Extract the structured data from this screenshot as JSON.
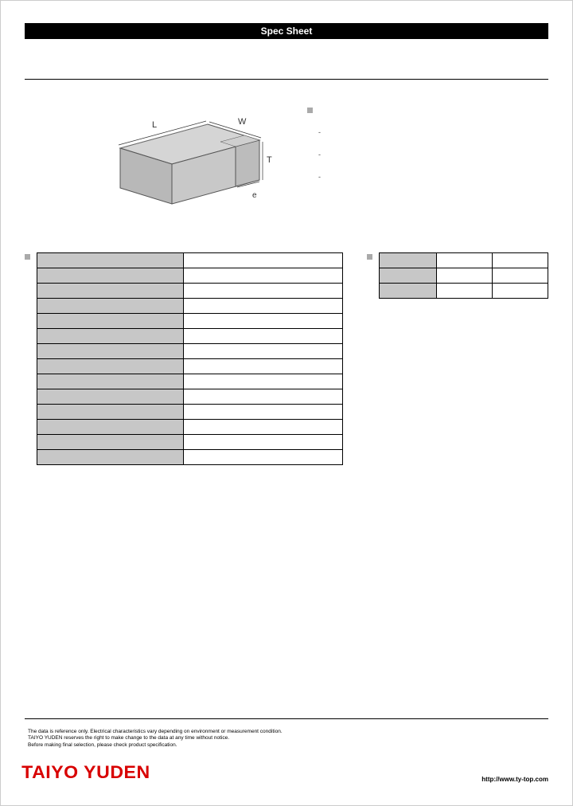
{
  "header": {
    "title": "Spec Sheet"
  },
  "diagram": {
    "labels": {
      "L": "L",
      "W": "W",
      "T": "T",
      "e": "e"
    },
    "stroke": "#555555",
    "fill_top": "#d5d5d5",
    "fill_side": "#c0c0c0",
    "fill_front": "#b0b0b0",
    "fill_cap": "#cccccc",
    "label_fontsize": 10
  },
  "bullets": {
    "items": [
      "-",
      "-",
      "-"
    ]
  },
  "spec_table": {
    "rows": [
      {
        "label": "",
        "value": ""
      },
      {
        "label": "",
        "value": ""
      },
      {
        "label": "",
        "value": ""
      },
      {
        "label": "",
        "value": ""
      },
      {
        "label": "",
        "value": ""
      },
      {
        "label": "",
        "value": ""
      },
      {
        "label": "",
        "value": ""
      },
      {
        "label": "",
        "value": ""
      },
      {
        "label": "",
        "value": ""
      },
      {
        "label": "",
        "value": ""
      },
      {
        "label": "",
        "value": ""
      },
      {
        "label": "",
        "value": ""
      },
      {
        "label": "",
        "value": ""
      },
      {
        "label": "",
        "value": ""
      }
    ]
  },
  "small_table": {
    "rows": [
      {
        "label": "",
        "v1": "",
        "v2": ""
      },
      {
        "label": "",
        "v1": "",
        "v2": ""
      },
      {
        "label": "",
        "v1": "",
        "v2": ""
      }
    ]
  },
  "footer": {
    "disclaimer1": "The data is reference only. Electrical characteristics vary depending on environment or measurement condition.",
    "disclaimer2": "TAIYO YUDEN reserves the right to make change to the data at any time without notice.",
    "disclaimer3": "Before making final selection, please check product specification.",
    "brand": "TAIYO YUDEN",
    "url": "http://www.ty-top.com"
  },
  "colors": {
    "accent_red": "#d80000",
    "grey_fill": "#c7c7c7"
  }
}
